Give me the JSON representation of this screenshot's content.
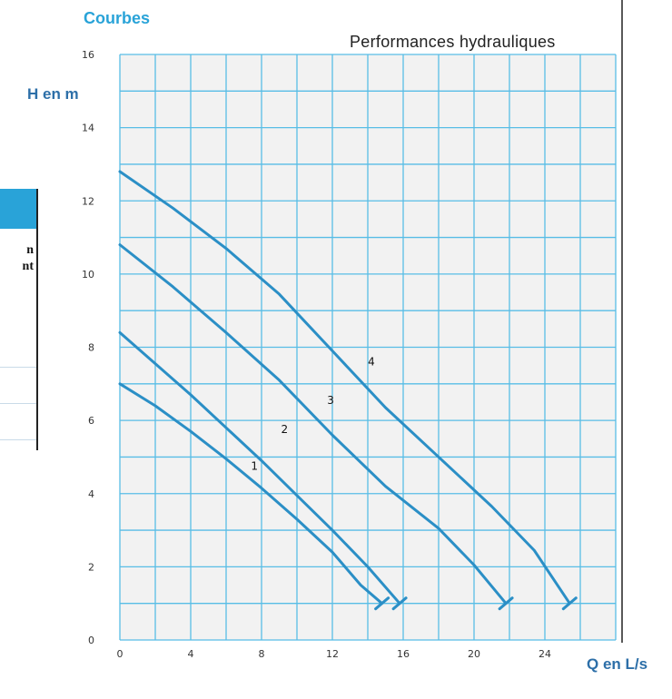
{
  "section_title": "Courbes",
  "fragment": {
    "line1": "n",
    "line2": "nt"
  },
  "colors": {
    "grid": "#58bde6",
    "plot_bg": "#f2f2f2",
    "curve": "#2b8fc6",
    "title": "#29a3d8",
    "axis_label": "#2d6fa8"
  },
  "chart_data": {
    "type": "line",
    "title": "Performances hydrauliques",
    "xlabel": "Q en L/s",
    "ylabel": "H en m",
    "xlim": [
      0,
      28
    ],
    "ylim": [
      0,
      16
    ],
    "x_ticks": [
      "0",
      "4",
      "8",
      "12",
      "16",
      "20",
      "24"
    ],
    "y_ticks": [
      "0",
      "2",
      "4",
      "6",
      "8",
      "10",
      "12",
      "14",
      "16"
    ],
    "grid": true,
    "series": [
      {
        "name": "1",
        "points": [
          [
            0,
            7.0
          ],
          [
            2,
            6.4
          ],
          [
            4,
            5.7
          ],
          [
            6,
            4.95
          ],
          [
            8,
            4.15
          ],
          [
            10,
            3.3
          ],
          [
            12,
            2.4
          ],
          [
            13.6,
            1.5
          ],
          [
            14.8,
            1.0
          ]
        ]
      },
      {
        "name": "2",
        "points": [
          [
            0,
            8.4
          ],
          [
            2,
            7.55
          ],
          [
            4,
            6.7
          ],
          [
            6,
            5.8
          ],
          [
            8,
            4.9
          ],
          [
            10,
            3.95
          ],
          [
            12,
            3.0
          ],
          [
            14,
            2.0
          ],
          [
            15.8,
            1.0
          ]
        ]
      },
      {
        "name": "3",
        "points": [
          [
            0,
            10.8
          ],
          [
            3,
            9.65
          ],
          [
            6,
            8.4
          ],
          [
            9,
            7.1
          ],
          [
            12,
            5.6
          ],
          [
            15,
            4.2
          ],
          [
            18,
            3.05
          ],
          [
            20,
            2.05
          ],
          [
            21.8,
            1.0
          ]
        ]
      },
      {
        "name": "4",
        "points": [
          [
            0,
            12.8
          ],
          [
            3,
            11.8
          ],
          [
            6,
            10.7
          ],
          [
            9,
            9.45
          ],
          [
            12,
            7.9
          ],
          [
            15,
            6.35
          ],
          [
            18,
            5.0
          ],
          [
            21,
            3.65
          ],
          [
            23.4,
            2.45
          ],
          [
            25.4,
            1.0
          ]
        ]
      }
    ],
    "curve_labels": [
      {
        "text": "1",
        "x": 7.6,
        "y": 4.65
      },
      {
        "text": "2",
        "x": 9.3,
        "y": 5.65
      },
      {
        "text": "3",
        "x": 11.9,
        "y": 6.45
      },
      {
        "text": "4",
        "x": 14.2,
        "y": 7.5
      }
    ]
  }
}
